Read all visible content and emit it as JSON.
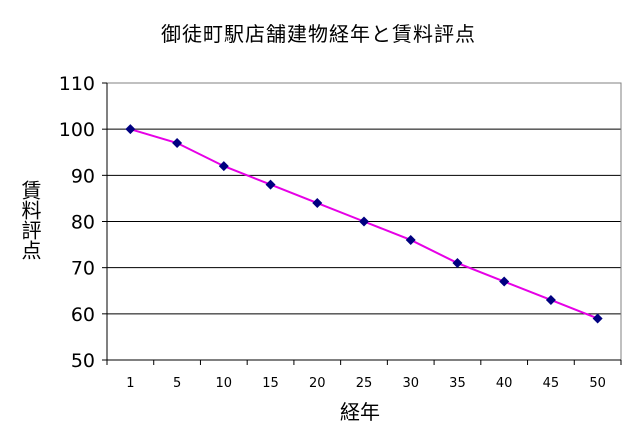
{
  "chart_data": {
    "type": "line",
    "title": "御徒町駅店舗建物経年と賃料評点",
    "xlabel": "経年",
    "ylabel": "賃料評点",
    "categories": [
      "1",
      "5",
      "10",
      "15",
      "20",
      "25",
      "30",
      "35",
      "40",
      "45",
      "50"
    ],
    "series": [
      {
        "values": [
          100,
          97,
          92,
          88,
          84,
          80,
          76,
          71,
          67,
          63,
          59
        ]
      }
    ],
    "ylim": [
      50,
      110
    ],
    "yticks": [
      50,
      60,
      70,
      80,
      90,
      100,
      110
    ],
    "grid": true,
    "legend": "none",
    "colors": {
      "line": "#e600e6",
      "marker": "#000080",
      "grid": "#000000"
    }
  }
}
